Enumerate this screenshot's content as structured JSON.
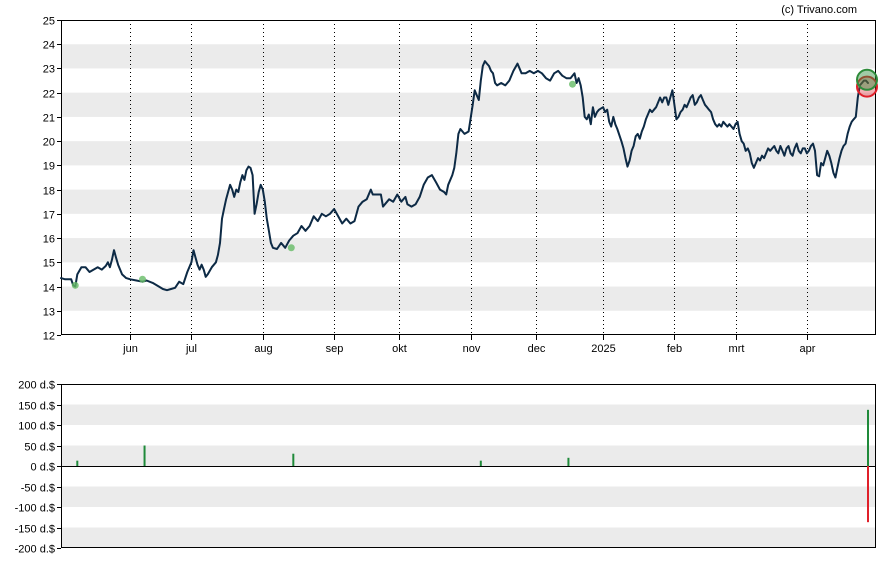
{
  "credit": "(c) Trivano.com",
  "colors": {
    "band": "#ebebeb",
    "price_line": "#0d2a45",
    "dividend_marker": "#66bb66",
    "buy_bar": "#1f8a3a",
    "sell_bar": "#e0202a",
    "last_buy_circle": "#2e8b3a",
    "last_sell_circle": "#e0202a"
  },
  "chart_data": [
    {
      "type": "line",
      "name": "price",
      "ylim": [
        12,
        25
      ],
      "y_ticks": [
        "12",
        "13",
        "14",
        "15",
        "16",
        "17",
        "18",
        "19",
        "20",
        "21",
        "22",
        "23",
        "24",
        "25"
      ],
      "x_tick_labels": [
        {
          "label": "jun",
          "day": 34
        },
        {
          "label": "jul",
          "day": 64
        },
        {
          "label": "aug",
          "day": 99
        },
        {
          "label": "sep",
          "day": 134
        },
        {
          "label": "okt",
          "day": 166
        },
        {
          "label": "nov",
          "day": 201
        },
        {
          "label": "dec",
          "day": 233
        },
        {
          "label": "2025",
          "day": 266
        },
        {
          "label": "feb",
          "day": 301
        },
        {
          "label": "mrt",
          "day": 331
        },
        {
          "label": "apr",
          "day": 366
        }
      ],
      "day_range": [
        0,
        396
      ],
      "grid": true,
      "points": [
        [
          0,
          14.35
        ],
        [
          2,
          14.3
        ],
        [
          5,
          14.3
        ],
        [
          6,
          14.05
        ],
        [
          7,
          14.0
        ],
        [
          8,
          14.5
        ],
        [
          10,
          14.8
        ],
        [
          12,
          14.8
        ],
        [
          14,
          14.6
        ],
        [
          16,
          14.7
        ],
        [
          18,
          14.8
        ],
        [
          20,
          14.7
        ],
        [
          22,
          14.85
        ],
        [
          23,
          15.0
        ],
        [
          24,
          14.8
        ],
        [
          25,
          15.1
        ],
        [
          26,
          15.5
        ],
        [
          27,
          15.2
        ],
        [
          28,
          14.9
        ],
        [
          30,
          14.5
        ],
        [
          32,
          14.35
        ],
        [
          34,
          14.3
        ],
        [
          37,
          14.25
        ],
        [
          40,
          14.2
        ],
        [
          42,
          14.25
        ],
        [
          45,
          14.15
        ],
        [
          48,
          14.0
        ],
        [
          50,
          13.9
        ],
        [
          52,
          13.85
        ],
        [
          54,
          13.9
        ],
        [
          56,
          13.95
        ],
        [
          58,
          14.2
        ],
        [
          60,
          14.1
        ],
        [
          62,
          14.6
        ],
        [
          64,
          15.0
        ],
        [
          65,
          15.5
        ],
        [
          66,
          15.2
        ],
        [
          67,
          14.9
        ],
        [
          68,
          14.7
        ],
        [
          69,
          14.9
        ],
        [
          70,
          14.7
        ],
        [
          71,
          14.4
        ],
        [
          72,
          14.5
        ],
        [
          74,
          14.8
        ],
        [
          76,
          15.0
        ],
        [
          77,
          15.3
        ],
        [
          78,
          15.8
        ],
        [
          79,
          16.8
        ],
        [
          80,
          17.2
        ],
        [
          81,
          17.6
        ],
        [
          82,
          17.9
        ],
        [
          83,
          18.2
        ],
        [
          84,
          18.0
        ],
        [
          85,
          17.7
        ],
        [
          86,
          18.0
        ],
        [
          87,
          17.9
        ],
        [
          88,
          18.3
        ],
        [
          89,
          18.6
        ],
        [
          90,
          18.4
        ],
        [
          91,
          18.8
        ],
        [
          92,
          18.95
        ],
        [
          93,
          18.9
        ],
        [
          94,
          18.6
        ],
        [
          95,
          17.0
        ],
        [
          96,
          17.4
        ],
        [
          97,
          17.9
        ],
        [
          98,
          18.2
        ],
        [
          99,
          18.0
        ],
        [
          100,
          17.5
        ],
        [
          101,
          16.8
        ],
        [
          102,
          16.3
        ],
        [
          103,
          15.8
        ],
        [
          104,
          15.6
        ],
        [
          106,
          15.55
        ],
        [
          108,
          15.8
        ],
        [
          110,
          15.6
        ],
        [
          112,
          15.9
        ],
        [
          114,
          16.1
        ],
        [
          116,
          16.2
        ],
        [
          118,
          16.5
        ],
        [
          120,
          16.3
        ],
        [
          122,
          16.5
        ],
        [
          124,
          16.9
        ],
        [
          126,
          16.7
        ],
        [
          128,
          17.0
        ],
        [
          130,
          16.9
        ],
        [
          132,
          17.0
        ],
        [
          134,
          17.2
        ],
        [
          136,
          16.9
        ],
        [
          138,
          16.6
        ],
        [
          140,
          16.8
        ],
        [
          142,
          16.6
        ],
        [
          144,
          16.7
        ],
        [
          146,
          17.3
        ],
        [
          148,
          17.5
        ],
        [
          150,
          17.6
        ],
        [
          152,
          18.0
        ],
        [
          153,
          17.8
        ],
        [
          155,
          17.8
        ],
        [
          157,
          17.8
        ],
        [
          158,
          17.3
        ],
        [
          159,
          17.4
        ],
        [
          161,
          17.6
        ],
        [
          163,
          17.5
        ],
        [
          165,
          17.8
        ],
        [
          167,
          17.5
        ],
        [
          169,
          17.7
        ],
        [
          170,
          17.4
        ],
        [
          172,
          17.3
        ],
        [
          174,
          17.4
        ],
        [
          176,
          17.7
        ],
        [
          178,
          18.2
        ],
        [
          180,
          18.5
        ],
        [
          182,
          18.6
        ],
        [
          184,
          18.3
        ],
        [
          186,
          18.0
        ],
        [
          188,
          17.9
        ],
        [
          189,
          17.8
        ],
        [
          190,
          18.2
        ],
        [
          192,
          18.6
        ],
        [
          193,
          18.9
        ],
        [
          194,
          19.5
        ],
        [
          195,
          20.3
        ],
        [
          196,
          20.5
        ],
        [
          198,
          20.3
        ],
        [
          200,
          20.4
        ],
        [
          202,
          21.5
        ],
        [
          203,
          22.1
        ],
        [
          204,
          21.9
        ],
        [
          205,
          21.7
        ],
        [
          206,
          22.5
        ],
        [
          207,
          23.1
        ],
        [
          208,
          23.3
        ],
        [
          209,
          23.2
        ],
        [
          210,
          23.1
        ],
        [
          211,
          22.9
        ],
        [
          212,
          22.8
        ],
        [
          213,
          22.4
        ],
        [
          214,
          22.3
        ],
        [
          216,
          22.4
        ],
        [
          218,
          22.3
        ],
        [
          220,
          22.5
        ],
        [
          222,
          22.9
        ],
        [
          224,
          23.2
        ],
        [
          226,
          22.8
        ],
        [
          228,
          22.8
        ],
        [
          230,
          22.9
        ],
        [
          232,
          22.8
        ],
        [
          234,
          22.9
        ],
        [
          236,
          22.8
        ],
        [
          238,
          22.6
        ],
        [
          240,
          22.5
        ],
        [
          242,
          22.8
        ],
        [
          244,
          22.9
        ],
        [
          246,
          22.7
        ],
        [
          248,
          22.6
        ],
        [
          250,
          22.6
        ],
        [
          252,
          22.8
        ],
        [
          253,
          22.4
        ],
        [
          254,
          22.6
        ],
        [
          255,
          22.3
        ],
        [
          256,
          21.8
        ],
        [
          257,
          21.0
        ],
        [
          258,
          20.9
        ],
        [
          259,
          21.1
        ],
        [
          260,
          20.7
        ],
        [
          261,
          21.4
        ],
        [
          262,
          21.0
        ],
        [
          263,
          21.2
        ],
        [
          264,
          21.3
        ],
        [
          266,
          21.4
        ],
        [
          267,
          21.2
        ],
        [
          268,
          21.3
        ],
        [
          269,
          20.8
        ],
        [
          270,
          20.6
        ],
        [
          271,
          21.0
        ],
        [
          272,
          20.7
        ],
        [
          273,
          20.5
        ],
        [
          275,
          20.0
        ],
        [
          276,
          19.7
        ],
        [
          277,
          19.3
        ],
        [
          278,
          18.95
        ],
        [
          279,
          19.2
        ],
        [
          280,
          19.6
        ],
        [
          281,
          19.8
        ],
        [
          282,
          20.2
        ],
        [
          283,
          20.3
        ],
        [
          284,
          20.1
        ],
        [
          285,
          20.4
        ],
        [
          286,
          20.6
        ],
        [
          287,
          20.9
        ],
        [
          288,
          21.1
        ],
        [
          289,
          21.3
        ],
        [
          290,
          21.2
        ],
        [
          291,
          21.3
        ],
        [
          292,
          21.4
        ],
        [
          293,
          21.6
        ],
        [
          294,
          21.8
        ],
        [
          295,
          21.6
        ],
        [
          296,
          21.8
        ],
        [
          297,
          21.8
        ],
        [
          298,
          21.5
        ],
        [
          299,
          21.8
        ],
        [
          300,
          22.1
        ],
        [
          301,
          21.5
        ],
        [
          302,
          20.9
        ],
        [
          303,
          21.0
        ],
        [
          304,
          21.2
        ],
        [
          305,
          21.3
        ],
        [
          306,
          21.5
        ],
        [
          307,
          21.4
        ],
        [
          308,
          21.6
        ],
        [
          309,
          21.8
        ],
        [
          310,
          21.9
        ],
        [
          311,
          21.5
        ],
        [
          312,
          21.6
        ],
        [
          313,
          21.8
        ],
        [
          314,
          21.9
        ],
        [
          315,
          21.7
        ],
        [
          316,
          21.5
        ],
        [
          317,
          21.4
        ],
        [
          318,
          21.3
        ],
        [
          319,
          21.2
        ],
        [
          320,
          20.9
        ],
        [
          321,
          20.7
        ],
        [
          322,
          20.6
        ],
        [
          323,
          20.7
        ],
        [
          324,
          20.6
        ],
        [
          325,
          20.8
        ],
        [
          326,
          20.7
        ],
        [
          327,
          20.6
        ],
        [
          328,
          20.7
        ],
        [
          329,
          20.6
        ],
        [
          330,
          20.5
        ],
        [
          331,
          20.7
        ],
        [
          332,
          20.8
        ],
        [
          333,
          20.3
        ],
        [
          334,
          20.0
        ],
        [
          335,
          19.9
        ],
        [
          336,
          19.6
        ],
        [
          337,
          19.7
        ],
        [
          338,
          19.5
        ],
        [
          339,
          19.1
        ],
        [
          340,
          18.9
        ],
        [
          341,
          19.1
        ],
        [
          342,
          19.3
        ],
        [
          343,
          19.2
        ],
        [
          344,
          19.4
        ],
        [
          345,
          19.3
        ],
        [
          346,
          19.5
        ],
        [
          347,
          19.7
        ],
        [
          348,
          19.6
        ],
        [
          349,
          19.7
        ],
        [
          350,
          19.8
        ],
        [
          351,
          19.6
        ],
        [
          352,
          19.5
        ],
        [
          353,
          19.8
        ],
        [
          354,
          19.6
        ],
        [
          355,
          19.4
        ],
        [
          356,
          19.7
        ],
        [
          357,
          19.8
        ],
        [
          358,
          19.5
        ],
        [
          359,
          19.4
        ],
        [
          360,
          19.7
        ],
        [
          361,
          19.9
        ],
        [
          362,
          19.6
        ],
        [
          363,
          19.5
        ],
        [
          364,
          19.7
        ],
        [
          365,
          19.7
        ],
        [
          366,
          19.5
        ],
        [
          367,
          19.6
        ],
        [
          368,
          19.8
        ],
        [
          369,
          19.9
        ],
        [
          370,
          19.6
        ],
        [
          371,
          18.6
        ],
        [
          372,
          18.55
        ],
        [
          373,
          19.1
        ],
        [
          374,
          19.0
        ],
        [
          375,
          19.3
        ],
        [
          376,
          19.6
        ],
        [
          377,
          19.4
        ],
        [
          378,
          19.1
        ],
        [
          379,
          18.7
        ],
        [
          380,
          18.5
        ],
        [
          381,
          18.9
        ],
        [
          382,
          19.3
        ],
        [
          383,
          19.6
        ],
        [
          384,
          19.8
        ],
        [
          385,
          19.9
        ],
        [
          386,
          20.3
        ],
        [
          387,
          20.6
        ],
        [
          388,
          20.8
        ],
        [
          389,
          20.9
        ],
        [
          390,
          21.0
        ],
        [
          391,
          21.8
        ],
        [
          392,
          22.3
        ],
        [
          393,
          22.4
        ],
        [
          394,
          22.5
        ],
        [
          395,
          22.5
        ],
        [
          396,
          22.4
        ]
      ],
      "dividend_markers": [
        [
          7,
          14.05
        ],
        [
          40,
          14.3
        ],
        [
          113,
          15.6
        ],
        [
          251,
          22.35
        ]
      ],
      "last_buy_marker": [
        396,
        22.45
      ],
      "last_sell_marker": [
        396,
        22.25
      ]
    },
    {
      "type": "bar",
      "name": "transactions",
      "ylim": [
        -200,
        200
      ],
      "unit": "d.$",
      "y_tick_labels": [
        "200 d.$",
        "150 d.$",
        "100 d.$",
        "50 d.$",
        "0 d.$",
        "-50 d.$",
        "-100 d.$",
        "-150 d.$",
        "-200 d.$"
      ],
      "bars": [
        {
          "day": 8,
          "value": 13
        },
        {
          "day": 41,
          "value": 50
        },
        {
          "day": 114,
          "value": 30
        },
        {
          "day": 206,
          "value": 13
        },
        {
          "day": 249,
          "value": 20
        },
        {
          "day": 396,
          "value": 137
        },
        {
          "day": 396,
          "value": -137
        }
      ]
    }
  ]
}
